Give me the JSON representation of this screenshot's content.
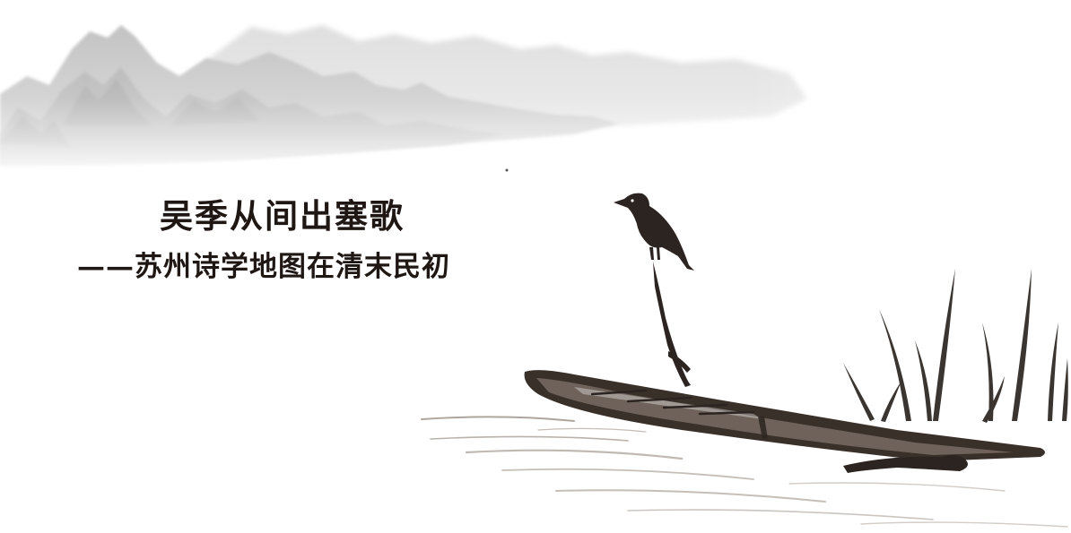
{
  "title": "吴季从间出塞歌",
  "subtitle": "——苏州诗学地图在清末民初",
  "colors": {
    "ink": "#1f1714",
    "mist": "#c9c9c9",
    "water": "#8c7f72",
    "background": "#ffffff"
  }
}
